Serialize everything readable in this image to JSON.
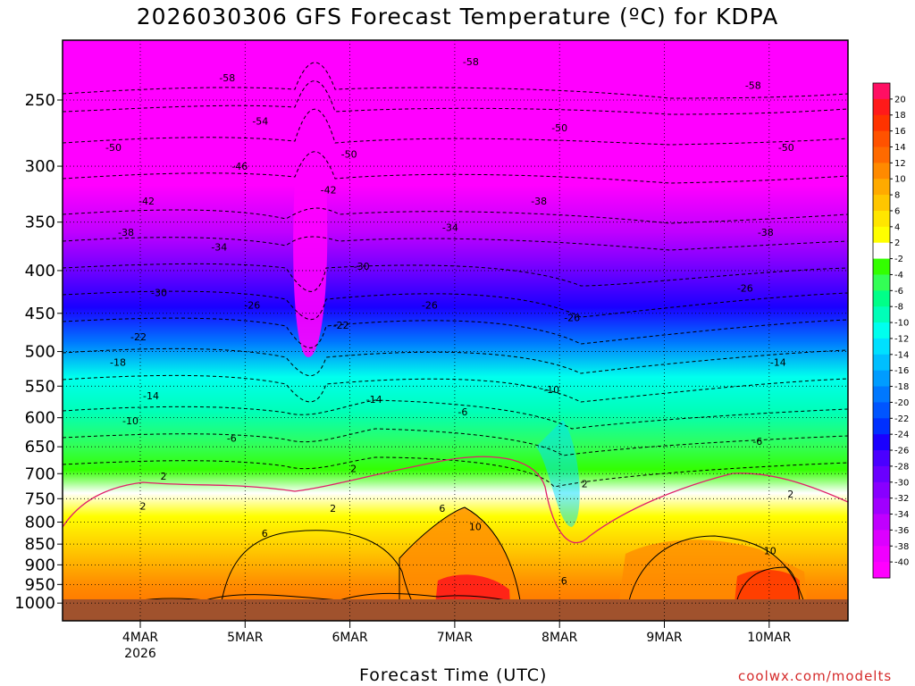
{
  "chart_data": {
    "type": "heatmap",
    "title": "2026030306 GFS Forecast Temperature (ºC) for KDPA",
    "xlabel": "Forecast Time (UTC)",
    "ylabel": "",
    "y_scale": "log",
    "y_reversed": true,
    "y_ticks": [
      250,
      300,
      350,
      400,
      450,
      500,
      550,
      600,
      650,
      700,
      750,
      800,
      850,
      900,
      950,
      1000
    ],
    "x_ticks": [
      "4MAR",
      "5MAR",
      "6MAR",
      "7MAR",
      "8MAR",
      "9MAR",
      "10MAR"
    ],
    "x_year": "2026",
    "grid": true,
    "colorbar": {
      "placement": "right",
      "labels": [
        20,
        18,
        16,
        14,
        12,
        10,
        8,
        6,
        4,
        2,
        -2,
        -4,
        -6,
        -8,
        -10,
        -12,
        -14,
        -16,
        -18,
        -20,
        -22,
        -24,
        -26,
        -28,
        -30,
        -32,
        -34,
        -36,
        -38,
        -40
      ],
      "colors": [
        "#ff0f63",
        "#ff1a1a",
        "#ff3300",
        "#ff5200",
        "#ff6a00",
        "#ff8a00",
        "#ffaa00",
        "#ffc600",
        "#ffe600",
        "#ffff00",
        "#ffffff",
        "#33ff00",
        "#33ff55",
        "#00ff88",
        "#00ffb8",
        "#00ffee",
        "#00e0ff",
        "#00bfff",
        "#009cff",
        "#0078ff",
        "#0055ff",
        "#0030ff",
        "#1a00ff",
        "#4a00ff",
        "#6a00ff",
        "#8800ff",
        "#a000ff",
        "#c000ff",
        "#dc00ff",
        "#f000ff",
        "#ff00ff"
      ]
    },
    "contour_labels": [
      {
        "x": "4MAR",
        "p": 285,
        "v": "-50"
      },
      {
        "x": "4MAR",
        "p": 330,
        "v": "-42"
      },
      {
        "x": "4MAR",
        "p": 360,
        "v": "-38"
      },
      {
        "x": "4MAR",
        "p": 425,
        "v": "-30"
      },
      {
        "x": "4MAR",
        "p": 480,
        "v": "-22"
      },
      {
        "x": "4MAR",
        "p": 515,
        "v": "-18"
      },
      {
        "x": "4MAR",
        "p": 565,
        "v": "-14"
      },
      {
        "x": "4MAR",
        "p": 605,
        "v": "-10"
      },
      {
        "x": "4MAR",
        "p": 705,
        "v": "2"
      },
      {
        "x": "4MAR",
        "p": 765,
        "v": "2"
      },
      {
        "x": "5MAR",
        "p": 235,
        "v": "-58"
      },
      {
        "x": "5MAR",
        "p": 265,
        "v": "-54"
      },
      {
        "x": "5MAR",
        "p": 300,
        "v": "-46"
      },
      {
        "x": "5MAR",
        "p": 375,
        "v": "-34"
      },
      {
        "x": "5MAR",
        "p": 440,
        "v": "-26"
      },
      {
        "x": "5MAR",
        "p": 635,
        "v": "-6"
      },
      {
        "x": "5MAR",
        "p": 825,
        "v": "6"
      },
      {
        "x": "6MAR",
        "p": 290,
        "v": "-50"
      },
      {
        "x": "6MAR",
        "p": 320,
        "v": "-42"
      },
      {
        "x": "6MAR",
        "p": 395,
        "v": "-30"
      },
      {
        "x": "6MAR",
        "p": 465,
        "v": "-22"
      },
      {
        "x": "6MAR",
        "p": 570,
        "v": "-14"
      },
      {
        "x": "6MAR",
        "p": 690,
        "v": "2"
      },
      {
        "x": "6MAR",
        "p": 770,
        "v": "2"
      },
      {
        "x": "7MAR",
        "p": 225,
        "v": "-58"
      },
      {
        "x": "7MAR",
        "p": 355,
        "v": "-34"
      },
      {
        "x": "7MAR",
        "p": 440,
        "v": "-26"
      },
      {
        "x": "7MAR",
        "p": 590,
        "v": "-6"
      },
      {
        "x": "7MAR",
        "p": 770,
        "v": "6"
      },
      {
        "x": "7MAR",
        "p": 810,
        "v": "10"
      },
      {
        "x": "8MAR",
        "p": 270,
        "v": "-50"
      },
      {
        "x": "8MAR",
        "p": 330,
        "v": "-38"
      },
      {
        "x": "8MAR",
        "p": 455,
        "v": "-26"
      },
      {
        "x": "8MAR",
        "p": 555,
        "v": "-10"
      },
      {
        "x": "8MAR",
        "p": 720,
        "v": "2"
      },
      {
        "x": "8MAR",
        "p": 940,
        "v": "6"
      },
      {
        "x": "10MAR",
        "p": 240,
        "v": "-58"
      },
      {
        "x": "10MAR",
        "p": 285,
        "v": "-50"
      },
      {
        "x": "10MAR",
        "p": 360,
        "v": "-38"
      },
      {
        "x": "10MAR",
        "p": 420,
        "v": "-26"
      },
      {
        "x": "10MAR",
        "p": 515,
        "v": "-14"
      },
      {
        "x": "10MAR",
        "p": 640,
        "v": "-6"
      },
      {
        "x": "10MAR",
        "p": 740,
        "v": "2"
      },
      {
        "x": "10MAR",
        "p": 865,
        "v": "10"
      }
    ]
  },
  "credit": "coolwx.com/modelts"
}
